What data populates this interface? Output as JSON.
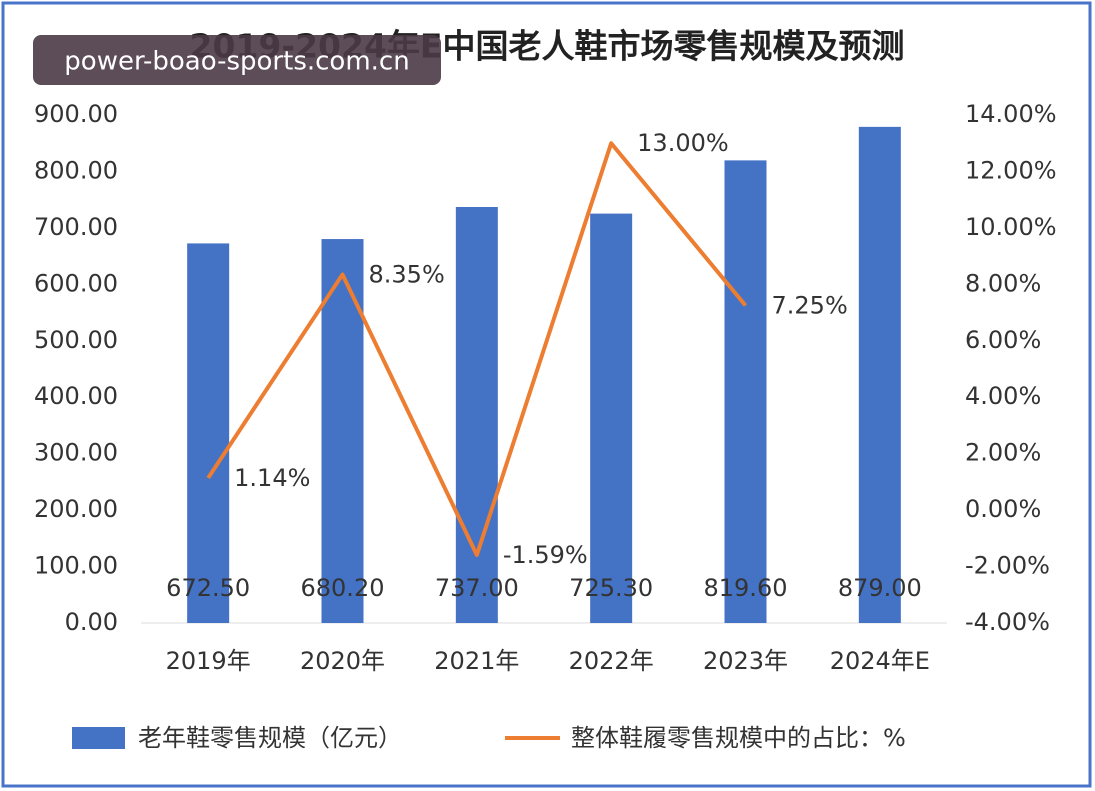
{
  "watermark": "power-boao-sports.com.cn",
  "chart_data": {
    "type": "bar_line",
    "title": "2019-2024年E中国老人鞋市场零售规模及预测",
    "categories": [
      "2019年",
      "2020年",
      "2021年",
      "2022年",
      "2023年",
      "2024年E"
    ],
    "series": [
      {
        "name": "老年鞋零售规模（亿元）",
        "color": "#4472c4",
        "type": "bar",
        "values": [
          672.5,
          680.2,
          737,
          725.3,
          819.6,
          879
        ],
        "value_labels": [
          "672.50",
          "680.20",
          "737.00",
          "725.30",
          "819.60",
          "879.00"
        ]
      },
      {
        "name": "整体鞋履零售规模中的占比：%",
        "color": "#ed7d31",
        "type": "line",
        "axis": "y2",
        "values": [
          1.14,
          8.35,
          -1.59,
          13,
          7.25,
          null
        ],
        "value_labels": [
          "1.14%",
          "8.35%",
          "-1.59%",
          "13.00%",
          "7.25%",
          null
        ]
      }
    ],
    "ylim": [
      0,
      900
    ],
    "yticks": [
      {
        "value": 0,
        "label": "0.00"
      },
      {
        "value": 100,
        "label": "100.00"
      },
      {
        "value": 200,
        "label": "200.00"
      },
      {
        "value": 300,
        "label": "300.00"
      },
      {
        "value": 400,
        "label": "400.00"
      },
      {
        "value": 500,
        "label": "500.00"
      },
      {
        "value": 600,
        "label": "600.00"
      },
      {
        "value": 700,
        "label": "700.00"
      },
      {
        "value": 800,
        "label": "800.00"
      },
      {
        "value": 900,
        "label": "900.00"
      }
    ],
    "y2lim": [
      -4,
      14
    ],
    "y2ticks": [
      {
        "value": -4,
        "label": "-4.00%"
      },
      {
        "value": -2,
        "label": "-2.00%"
      },
      {
        "value": 0,
        "label": "0.00%"
      },
      {
        "value": 2,
        "label": "2.00%"
      },
      {
        "value": 4,
        "label": "4.00%"
      },
      {
        "value": 6,
        "label": "6.00%"
      },
      {
        "value": 8,
        "label": "8.00%"
      },
      {
        "value": 10,
        "label": "10.00%"
      },
      {
        "value": 12,
        "label": "12.00%"
      },
      {
        "value": 14,
        "label": "14.00%"
      }
    ],
    "grid": false,
    "legend": "bottom"
  }
}
